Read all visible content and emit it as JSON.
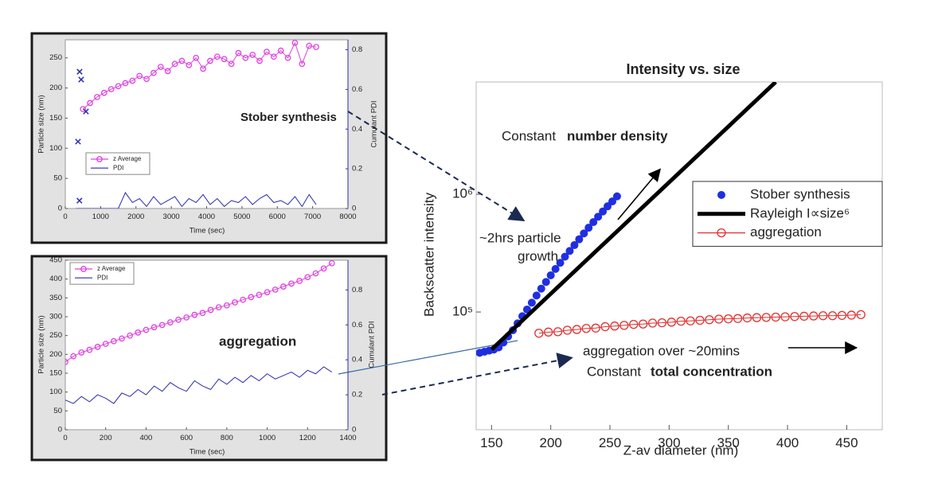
{
  "chart_data": [
    {
      "type": "line",
      "xlabel": "Time (sec)",
      "ylabel": "Particle size (nm)",
      "y2label": "Cumulant PDI",
      "annotations": [
        "Stober synthesis"
      ],
      "xlim": [
        0,
        8000
      ],
      "xticks": [
        0,
        1000,
        2000,
        3000,
        4000,
        5000,
        6000,
        7000,
        8000
      ],
      "ylim": [
        0,
        280
      ],
      "yticks": [
        0,
        50,
        100,
        150,
        200,
        250
      ],
      "y2lim": [
        0,
        0.85
      ],
      "y2ticks": [
        0,
        0.2,
        0.4,
        0.6,
        0.8
      ],
      "grid": false,
      "series": [
        {
          "name": "z Average",
          "color": "#e040e0",
          "line": true,
          "marker": "circle-open",
          "x": [
            500,
            700,
            900,
            1100,
            1300,
            1500,
            1700,
            1900,
            2100,
            2300,
            2500,
            2700,
            2900,
            3100,
            3300,
            3500,
            3700,
            3900,
            4100,
            4300,
            4500,
            4700,
            4900,
            5100,
            5300,
            5500,
            5700,
            5900,
            6100,
            6300,
            6500,
            6700,
            6900,
            7100
          ],
          "values": [
            165,
            175,
            185,
            192,
            198,
            203,
            208,
            212,
            220,
            215,
            225,
            235,
            228,
            240,
            245,
            238,
            250,
            232,
            245,
            252,
            248,
            240,
            258,
            250,
            255,
            245,
            260,
            252,
            262,
            250,
            275,
            240,
            270,
            268
          ]
        },
        {
          "name": "PDI",
          "color": "#2b2bb0",
          "line": true,
          "marker": null,
          "axis": "y2",
          "x": [
            300,
            500,
            700,
            900,
            1100,
            1300,
            1500,
            1700,
            1900,
            2100,
            2300,
            2500,
            2700,
            2900,
            3100,
            3300,
            3500,
            3700,
            3900,
            4100,
            4300,
            4500,
            4700,
            4900,
            5100,
            5300,
            5500,
            5700,
            5900,
            6100,
            6300,
            6500,
            6700,
            6900,
            7100
          ],
          "values": [
            0,
            0,
            0,
            0,
            0,
            0,
            0,
            0.08,
            0.03,
            0.05,
            0.01,
            0.06,
            0.02,
            0.04,
            0.06,
            0.01,
            0.05,
            0.03,
            0.07,
            0.02,
            0.05,
            0.01,
            0.04,
            0.03,
            0.06,
            0.02,
            0.05,
            0.07,
            0.03,
            0.04,
            0.02,
            0.06,
            0.01,
            0.07,
            0.02
          ]
        },
        {
          "color": "#2b2bb0",
          "line": false,
          "marker": "x",
          "x": [
            405,
            450,
            585,
            360,
            400
          ],
          "values": [
            227,
            214,
            161,
            111,
            13
          ]
        }
      ]
    },
    {
      "type": "line",
      "xlabel": "Time (sec)",
      "ylabel": "Particle size (nm)",
      "y2label": "Cumulant PDI",
      "annotations": [
        "aggregation"
      ],
      "xlim": [
        0,
        1400
      ],
      "xticks": [
        0,
        200,
        400,
        600,
        800,
        1000,
        1200,
        1400
      ],
      "ylim": [
        0,
        450
      ],
      "yticks": [
        0,
        50,
        100,
        150,
        200,
        250,
        300,
        350,
        400,
        450
      ],
      "y2lim": [
        0,
        0.97
      ],
      "y2ticks": [
        0,
        0.2,
        0.4,
        0.6,
        0.8
      ],
      "grid": false,
      "series": [
        {
          "name": "z Average",
          "color": "#e040e0",
          "line": true,
          "marker": "circle-open",
          "x": [
            0,
            40,
            80,
            120,
            160,
            200,
            240,
            280,
            320,
            360,
            400,
            440,
            480,
            520,
            560,
            600,
            640,
            680,
            720,
            760,
            800,
            840,
            880,
            920,
            960,
            1000,
            1040,
            1080,
            1120,
            1160,
            1200,
            1240,
            1280,
            1320
          ],
          "values": [
            180,
            195,
            205,
            212,
            220,
            228,
            235,
            242,
            250,
            258,
            265,
            272,
            278,
            285,
            292,
            298,
            305,
            310,
            318,
            325,
            330,
            338,
            345,
            352,
            358,
            365,
            372,
            380,
            388,
            395,
            405,
            415,
            428,
            442
          ]
        },
        {
          "name": "PDI",
          "color": "#2b2bb0",
          "line": true,
          "marker": null,
          "axis": "y2",
          "x": [
            0,
            40,
            80,
            120,
            160,
            200,
            240,
            280,
            320,
            360,
            400,
            440,
            480,
            520,
            560,
            600,
            640,
            680,
            720,
            760,
            800,
            840,
            880,
            920,
            960,
            1000,
            1040,
            1080,
            1120,
            1160,
            1200,
            1240,
            1280,
            1320
          ],
          "values": [
            0.17,
            0.15,
            0.19,
            0.16,
            0.2,
            0.18,
            0.15,
            0.21,
            0.19,
            0.23,
            0.2,
            0.25,
            0.22,
            0.27,
            0.24,
            0.22,
            0.28,
            0.25,
            0.23,
            0.29,
            0.26,
            0.3,
            0.27,
            0.31,
            0.28,
            0.32,
            0.29,
            0.31,
            0.33,
            0.3,
            0.34,
            0.32,
            0.36,
            0.33
          ]
        }
      ]
    },
    {
      "type": "scatter",
      "title": "Intensity vs. size",
      "xlabel": "Z-av diameter (nm)",
      "ylabel": "Backscatter intensity",
      "annotations": [
        "Constant",
        "number density",
        "~2hrs particle",
        "growth",
        "aggregation over ~20mins",
        "Constant",
        "total concentration"
      ],
      "xlim": [
        137,
        480
      ],
      "xticks": [
        150,
        200,
        250,
        300,
        350,
        400,
        450
      ],
      "ylim": [
        10000,
        9000000
      ],
      "yscale": "log",
      "yticks": [
        {
          "value": 100000,
          "label": "10⁵"
        },
        {
          "value": 1000000,
          "label": "10⁶"
        }
      ],
      "grid": false,
      "series": [
        {
          "name": "Stober synthesis",
          "color": "#1f2fe0",
          "line": false,
          "marker": "circle",
          "x": [
            140,
            144,
            148,
            152,
            156,
            160,
            164,
            168,
            172,
            176,
            180,
            184,
            188,
            192,
            196,
            200,
            204,
            208,
            212,
            216,
            220,
            224,
            228,
            232,
            236,
            240,
            244,
            248,
            252,
            256
          ],
          "values": [
            45000,
            46000,
            47000,
            48000,
            50000,
            55000,
            62000,
            70000,
            80000,
            92000,
            105000,
            120000,
            138000,
            158000,
            180000,
            205000,
            232000,
            262000,
            295000,
            330000,
            370000,
            415000,
            465000,
            520000,
            580000,
            645000,
            715000,
            790000,
            870000,
            960000
          ]
        },
        {
          "name": "Rayleigh I∝size⁶",
          "color": "#000000",
          "line": true,
          "marker": null,
          "line_width": 5,
          "x": [
            150,
            390
          ],
          "values": [
            48000,
            9000000
          ]
        },
        {
          "name": "aggregation",
          "color": "#e03030",
          "line": true,
          "marker": "circle-open",
          "x": [
            190,
            198,
            206,
            214,
            222,
            230,
            238,
            246,
            254,
            262,
            270,
            278,
            286,
            294,
            302,
            310,
            318,
            326,
            334,
            342,
            350,
            358,
            366,
            374,
            382,
            390,
            398,
            406,
            414,
            422,
            430,
            438,
            446,
            454,
            462
          ],
          "values": [
            66000,
            67500,
            68000,
            70000,
            71000,
            72500,
            73000,
            75000,
            76000,
            77000,
            78500,
            79000,
            80500,
            81000,
            82000,
            83500,
            84000,
            85000,
            86000,
            87000,
            87500,
            88000,
            89000,
            89500,
            90000,
            90500,
            91000,
            91500,
            92000,
            92500,
            93000,
            93000,
            93500,
            94000,
            95000
          ]
        }
      ]
    }
  ]
}
